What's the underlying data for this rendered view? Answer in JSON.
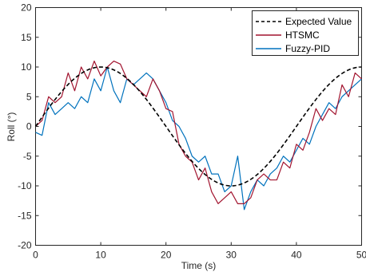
{
  "chart_data": {
    "type": "line",
    "title": "",
    "xlabel": "Time (s)",
    "ylabel": "Roll (°)",
    "xlim": [
      0,
      50
    ],
    "ylim": [
      -20,
      20
    ],
    "xticks": [
      "0",
      "10",
      "20",
      "30",
      "40",
      "50"
    ],
    "yticks": [
      "-20",
      "-15",
      "-10",
      "-5",
      "0",
      "5",
      "10",
      "15",
      "20"
    ],
    "grid": false,
    "legend_position": "top-right",
    "colors": {
      "expected": "#000000",
      "htsmc": "#A2142F",
      "fuzzy": "#0072BD"
    },
    "series": [
      {
        "name": "Expected Value",
        "style": "dashed",
        "function": "10*sin(2*pi*t/40)",
        "x": [
          0,
          2.5,
          5,
          7.5,
          10,
          12.5,
          15,
          17.5,
          20,
          22.5,
          25,
          27.5,
          30,
          32.5,
          35,
          37.5,
          40,
          42.5,
          45,
          47.5,
          50
        ],
        "values": [
          0,
          3.83,
          7.07,
          9.24,
          10,
          9.24,
          7.07,
          3.83,
          0,
          -3.83,
          -7.07,
          -9.24,
          -10,
          -9.24,
          -7.07,
          -3.83,
          0,
          3.83,
          7.07,
          9.24,
          10
        ]
      },
      {
        "name": "HTSMC",
        "style": "solid",
        "x": [
          0,
          1,
          2,
          3,
          4,
          5,
          6,
          7,
          8,
          9,
          10,
          11,
          12,
          13,
          14,
          15,
          16,
          17,
          18,
          19,
          20,
          21,
          22,
          23,
          24,
          25,
          26,
          27,
          28,
          29,
          30,
          31,
          32,
          33,
          34,
          35,
          36,
          37,
          38,
          39,
          40,
          41,
          42,
          43,
          44,
          45,
          46,
          47,
          48,
          49,
          50
        ],
        "values": [
          0,
          1,
          5,
          4,
          5,
          9,
          6,
          10,
          8,
          11,
          8.5,
          10,
          11,
          10.5,
          8,
          7,
          6,
          5,
          8,
          6,
          3,
          2.5,
          -3,
          -5,
          -6,
          -9,
          -7,
          -11,
          -13,
          -12,
          -11,
          -13,
          -13,
          -12,
          -9,
          -8,
          -9,
          -9,
          -6,
          -7,
          -3,
          -4,
          -1,
          3,
          1,
          3,
          2,
          7,
          5,
          9,
          8
        ]
      },
      {
        "name": "Fuzzy-PID",
        "style": "solid",
        "x": [
          0,
          1,
          2,
          3,
          4,
          5,
          6,
          7,
          8,
          9,
          10,
          11,
          12,
          13,
          14,
          15,
          16,
          17,
          18,
          19,
          20,
          21,
          22,
          23,
          24,
          25,
          26,
          27,
          28,
          29,
          30,
          31,
          32,
          33,
          34,
          35,
          36,
          37,
          38,
          39,
          40,
          41,
          42,
          43,
          44,
          45,
          46,
          47,
          48,
          49,
          50
        ],
        "values": [
          -1,
          -1.5,
          4,
          2,
          3,
          4,
          3,
          5,
          4,
          8,
          6,
          10,
          6,
          4,
          8,
          7,
          8,
          9,
          8,
          6,
          4,
          1,
          0,
          -2,
          -5,
          -6,
          -5,
          -8,
          -8,
          -11,
          -10,
          -5,
          -14,
          -11,
          -9,
          -10,
          -8,
          -7,
          -5,
          -6,
          -4,
          -2,
          -3,
          0,
          2,
          4,
          3,
          5,
          6,
          7,
          8
        ]
      }
    ]
  }
}
